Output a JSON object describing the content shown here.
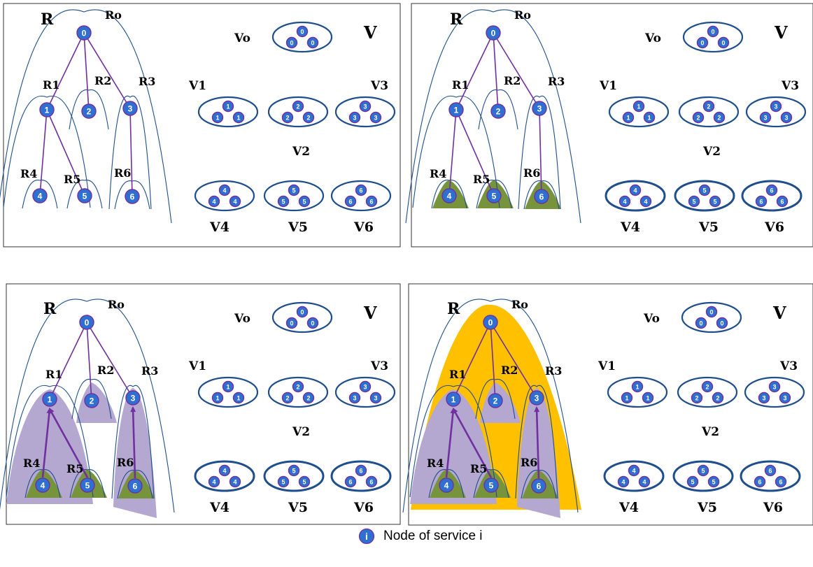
{
  "panels": [
    {
      "tree_label": "R",
      "set_label": "V",
      "region_labels": [
        "Ro",
        "R1",
        "R2",
        "R3",
        "R4",
        "R5",
        "R6"
      ],
      "set_labels": [
        "Vo",
        "V1",
        "V2",
        "V3",
        "V4",
        "V5",
        "V6"
      ],
      "node_ids": [
        "0",
        "1",
        "2",
        "3",
        "4",
        "5",
        "6"
      ],
      "highlight": "none"
    },
    {
      "tree_label": "R",
      "set_label": "V",
      "region_labels": [
        "Ro",
        "R1",
        "R2",
        "R3",
        "R4",
        "R5",
        "R6"
      ],
      "set_labels": [
        "Vo",
        "V1",
        "V2",
        "V3",
        "V4",
        "V5",
        "V6"
      ],
      "node_ids": [
        "0",
        "1",
        "2",
        "3",
        "4",
        "5",
        "6"
      ],
      "highlight": "leaves"
    },
    {
      "tree_label": "R",
      "set_label": "V",
      "region_labels": [
        "Ro",
        "R1",
        "R2",
        "R3",
        "R4",
        "R5",
        "R6"
      ],
      "set_labels": [
        "Vo",
        "V1",
        "V2",
        "V3",
        "V4",
        "V5",
        "V6"
      ],
      "node_ids": [
        "0",
        "1",
        "2",
        "3",
        "4",
        "5",
        "6"
      ],
      "highlight": "subtrees"
    },
    {
      "tree_label": "R",
      "set_label": "V",
      "region_labels": [
        "Ro",
        "R1",
        "R2",
        "R3",
        "R4",
        "R5",
        "R6"
      ],
      "set_labels": [
        "Vo",
        "V1",
        "V2",
        "V3",
        "V4",
        "V5",
        "V6"
      ],
      "node_ids": [
        "0",
        "1",
        "2",
        "3",
        "4",
        "5",
        "6"
      ],
      "highlight": "root"
    }
  ],
  "legend": {
    "icon_glyph": "i",
    "text": "Node of service i"
  },
  "colors": {
    "frame": "#333333",
    "arc": "#1f4e8c",
    "edge": "#7030a0",
    "node_fill": "#2f6fd1",
    "node_stroke": "#7030a0",
    "green": "#77933c",
    "lavender": "#b4a7d0",
    "gold": "#ffc000"
  }
}
